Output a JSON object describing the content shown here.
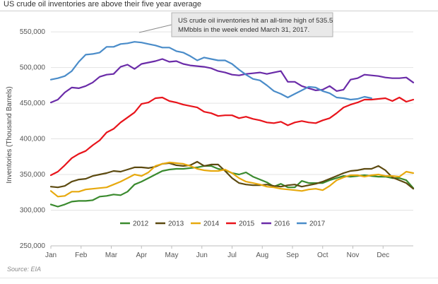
{
  "chart_data": {
    "type": "line",
    "title": "US crude oil inventories are above their five year average",
    "ylabel": "Inventories (Thousand  Barrels)",
    "xlabel": "",
    "ylim": [
      250000,
      560000
    ],
    "yticks": [
      "550,000",
      "500,000",
      "450,000",
      "400,000",
      "350,000",
      "300,000",
      "250,000"
    ],
    "ytick_values": [
      550000,
      500000,
      450000,
      400000,
      350000,
      300000,
      250000
    ],
    "months": [
      "Jan",
      "Feb",
      "Mar",
      "Apr",
      "May",
      "Jun",
      "Jul",
      "Aug",
      "Sep",
      "Oct",
      "Nov",
      "Dec"
    ],
    "x_week_range": [
      1,
      53
    ],
    "grid": true,
    "legend_position": "bottom",
    "annotation": {
      "line1": "US crude oil inventories hit an all-time high of 535.5",
      "line2": "MMbbls in the week ended March 31, 2017."
    },
    "source": "Source: EIA",
    "series": [
      {
        "name": "2012",
        "color": "#3a8a2e",
        "x": [
          1,
          2,
          3,
          4,
          5,
          6,
          7,
          8,
          9,
          10,
          11,
          12,
          13,
          14,
          15,
          16,
          17,
          18,
          19,
          20,
          21,
          22,
          23,
          24,
          25,
          26,
          27,
          28,
          29,
          30,
          31,
          32,
          33,
          34,
          35,
          36,
          37,
          38,
          39,
          40,
          41,
          42,
          43,
          44,
          45,
          46,
          47,
          48,
          49,
          50,
          51,
          52,
          53
        ],
        "values": [
          308000,
          305000,
          308000,
          312000,
          313000,
          313000,
          314000,
          319000,
          320000,
          322000,
          321000,
          326000,
          336000,
          340000,
          345000,
          350000,
          355000,
          357000,
          358000,
          358000,
          359000,
          360000,
          362000,
          362000,
          358000,
          356000,
          352000,
          350000,
          353000,
          347000,
          343000,
          339000,
          333000,
          337000,
          332000,
          332000,
          341000,
          338000,
          338000,
          338000,
          342000,
          345000,
          348000,
          347000,
          348000,
          349000,
          348000,
          347000,
          347000,
          345000,
          345000,
          342000,
          331000
        ]
      },
      {
        "name": "2013",
        "color": "#5c4a10",
        "x": [
          1,
          2,
          3,
          4,
          5,
          6,
          7,
          8,
          9,
          10,
          11,
          12,
          13,
          14,
          15,
          16,
          17,
          18,
          19,
          20,
          21,
          22,
          23,
          24,
          25,
          26,
          27,
          28,
          29,
          30,
          31,
          32,
          33,
          34,
          35,
          36,
          37,
          38,
          39,
          40,
          41,
          42,
          43,
          44,
          45,
          46,
          47,
          48,
          49,
          50,
          51,
          52,
          53
        ],
        "values": [
          333000,
          332000,
          334000,
          340000,
          343000,
          344000,
          348000,
          350000,
          352000,
          355000,
          354000,
          357000,
          360000,
          360000,
          359000,
          361000,
          365000,
          366000,
          363000,
          362000,
          363000,
          368000,
          362000,
          364000,
          364000,
          355000,
          345000,
          338000,
          336000,
          335000,
          335000,
          336000,
          334000,
          333000,
          335000,
          336000,
          333000,
          335000,
          337000,
          340000,
          344000,
          348000,
          352000,
          355000,
          356000,
          358000,
          358000,
          362000,
          356000,
          346000,
          342000,
          338000,
          330000
        ]
      },
      {
        "name": "2014",
        "color": "#e7a90e",
        "x": [
          1,
          2,
          3,
          4,
          5,
          6,
          7,
          8,
          9,
          10,
          11,
          12,
          13,
          14,
          15,
          16,
          17,
          18,
          19,
          20,
          21,
          22,
          23,
          24,
          25,
          26,
          27,
          28,
          29,
          30,
          31,
          32,
          33,
          34,
          35,
          36,
          37,
          38,
          39,
          40,
          41,
          42,
          43,
          44,
          45,
          46,
          47,
          48,
          49,
          50,
          51,
          52,
          53
        ],
        "values": [
          327000,
          319000,
          320000,
          326000,
          326000,
          329000,
          330000,
          331000,
          332000,
          336000,
          340000,
          345000,
          350000,
          348000,
          353000,
          362000,
          365000,
          367000,
          366000,
          365000,
          362000,
          358000,
          356000,
          355000,
          355000,
          357000,
          352000,
          345000,
          340000,
          338000,
          336000,
          333000,
          332000,
          330000,
          329000,
          328000,
          327000,
          329000,
          330000,
          328000,
          334000,
          342000,
          346000,
          349000,
          349000,
          347000,
          349000,
          350000,
          348000,
          348000,
          347000,
          354000,
          352000
        ]
      },
      {
        "name": "2015",
        "color": "#e8141b",
        "x": [
          1,
          2,
          3,
          4,
          5,
          6,
          7,
          8,
          9,
          10,
          11,
          12,
          13,
          14,
          15,
          16,
          17,
          18,
          19,
          20,
          21,
          22,
          23,
          24,
          25,
          26,
          27,
          28,
          29,
          30,
          31,
          32,
          33,
          34,
          35,
          36,
          37,
          38,
          39,
          40,
          41,
          42,
          43,
          44,
          45,
          46,
          47,
          48,
          49,
          50,
          51,
          52,
          53
        ],
        "values": [
          349000,
          354000,
          363000,
          373000,
          379000,
          383000,
          391000,
          398000,
          409000,
          414000,
          423000,
          430000,
          437000,
          449000,
          451000,
          457000,
          458000,
          453000,
          451000,
          448000,
          446000,
          444000,
          438000,
          436000,
          432000,
          433000,
          433000,
          429000,
          431000,
          428000,
          426000,
          423000,
          422000,
          424000,
          419000,
          423000,
          425000,
          423000,
          422000,
          426000,
          429000,
          436000,
          444000,
          448000,
          451000,
          455000,
          455000,
          456000,
          457000,
          453000,
          458000,
          452000,
          455000
        ]
      },
      {
        "name": "2016",
        "color": "#6a2ba8",
        "x": [
          1,
          2,
          3,
          4,
          5,
          6,
          7,
          8,
          9,
          10,
          11,
          12,
          13,
          14,
          15,
          16,
          17,
          18,
          19,
          20,
          21,
          22,
          23,
          24,
          25,
          26,
          27,
          28,
          29,
          30,
          31,
          32,
          33,
          34,
          35,
          36,
          37,
          38,
          39,
          40,
          41,
          42,
          43,
          44,
          45,
          46,
          47,
          48,
          49,
          50,
          51,
          52,
          53
        ],
        "values": [
          451000,
          455000,
          465000,
          472000,
          471000,
          474000,
          479000,
          487000,
          490000,
          491000,
          501000,
          504000,
          498000,
          505000,
          507000,
          509000,
          512000,
          508000,
          509000,
          505000,
          503000,
          502000,
          501000,
          499000,
          495000,
          493000,
          490000,
          489000,
          491000,
          492000,
          493000,
          491000,
          493000,
          495000,
          480000,
          480000,
          474000,
          471000,
          468000,
          469000,
          474000,
          467000,
          469000,
          483000,
          485000,
          490000,
          489000,
          488000,
          486000,
          485000,
          485000,
          486000,
          479000
        ]
      },
      {
        "name": "2017",
        "color": "#4a8cc9",
        "x": [
          1,
          2,
          3,
          4,
          5,
          6,
          7,
          8,
          9,
          10,
          11,
          12,
          13,
          14,
          15,
          16,
          17,
          18,
          19,
          20,
          21,
          22,
          23,
          24,
          25,
          26,
          27,
          28,
          29,
          30,
          31,
          32,
          33,
          34,
          35,
          36,
          37,
          38,
          39,
          40,
          41,
          42,
          43,
          44,
          45,
          46,
          47
        ],
        "values": [
          483000,
          485000,
          488000,
          495000,
          508000,
          518000,
          519000,
          521000,
          529000,
          529000,
          533000,
          534000,
          536000,
          535000,
          533000,
          531000,
          528000,
          528000,
          523000,
          521000,
          516000,
          510000,
          514000,
          512000,
          510000,
          510000,
          505000,
          497000,
          490000,
          484000,
          482000,
          475000,
          467000,
          463000,
          458000,
          463000,
          468000,
          473000,
          472000,
          467000,
          464000,
          458000,
          457000,
          455000,
          456000,
          459000,
          457000
        ]
      }
    ]
  }
}
